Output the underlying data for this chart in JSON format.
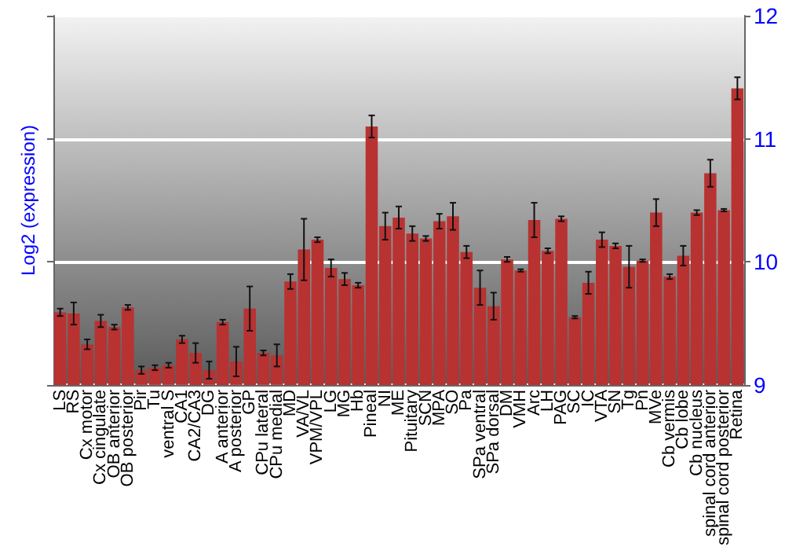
{
  "chart_data": {
    "type": "bar",
    "ylabel": "Log2 (expression)",
    "categories": [
      "LS",
      "RS",
      "Cx motor",
      "Cx cingulate",
      "OB anterior",
      "OB posterior",
      "Pir",
      "Tu",
      "ventral S",
      "CA1",
      "CA2/CA3",
      "DG",
      "A anterior",
      "A posterior",
      "GP",
      "CPu lateral",
      "CPu medial",
      "MD",
      "VA/VL",
      "VPM/VPL",
      "LG",
      "MG",
      "Hb",
      "Pineal",
      "NI",
      "ME",
      "Pituitary",
      "SCN",
      "MPA",
      "SO",
      "Pa",
      "SPa ventral",
      "SPa dorsal",
      "DM",
      "VMH",
      "Arc",
      "LH",
      "PAG",
      "SC",
      "IC",
      "VTA",
      "SN",
      "Tg",
      "Pn",
      "MVe",
      "Cb vermis",
      "Cb lobe",
      "Cb nucleus",
      "spinal cord anterior",
      "spinal cord posterior",
      "Retina"
    ],
    "series": [
      {
        "color": "#b83232",
        "values": [
          9.59,
          9.58,
          9.33,
          9.52,
          9.47,
          9.63,
          9.12,
          9.14,
          9.16,
          9.37,
          9.26,
          9.12,
          9.51,
          9.19,
          9.62,
          9.26,
          9.24,
          9.84,
          10.1,
          10.18,
          9.95,
          9.86,
          9.81,
          11.1,
          10.29,
          10.36,
          10.23,
          10.19,
          10.33,
          10.37,
          10.08,
          9.79,
          9.64,
          10.02,
          9.93,
          10.34,
          10.09,
          10.35,
          9.55,
          9.83,
          10.18,
          10.13,
          9.96,
          10.01,
          10.4,
          9.88,
          10.05,
          10.4,
          10.72,
          10.42,
          11.41
        ],
        "errors": [
          0.03,
          0.09,
          0.04,
          0.05,
          0.02,
          0.02,
          0.03,
          0.02,
          0.02,
          0.03,
          0.08,
          0.07,
          0.02,
          0.12,
          0.18,
          0.02,
          0.09,
          0.06,
          0.25,
          0.02,
          0.07,
          0.05,
          0.02,
          0.09,
          0.11,
          0.09,
          0.06,
          0.02,
          0.06,
          0.11,
          0.05,
          0.14,
          0.11,
          0.02,
          0.01,
          0.14,
          0.02,
          0.02,
          0.01,
          0.09,
          0.06,
          0.02,
          0.17,
          0.01,
          0.11,
          0.02,
          0.08,
          0.02,
          0.11,
          0.01,
          0.09
        ]
      }
    ],
    "ylim": [
      9,
      12
    ],
    "yticks": [
      9,
      10,
      11,
      12
    ],
    "grid": "y"
  }
}
